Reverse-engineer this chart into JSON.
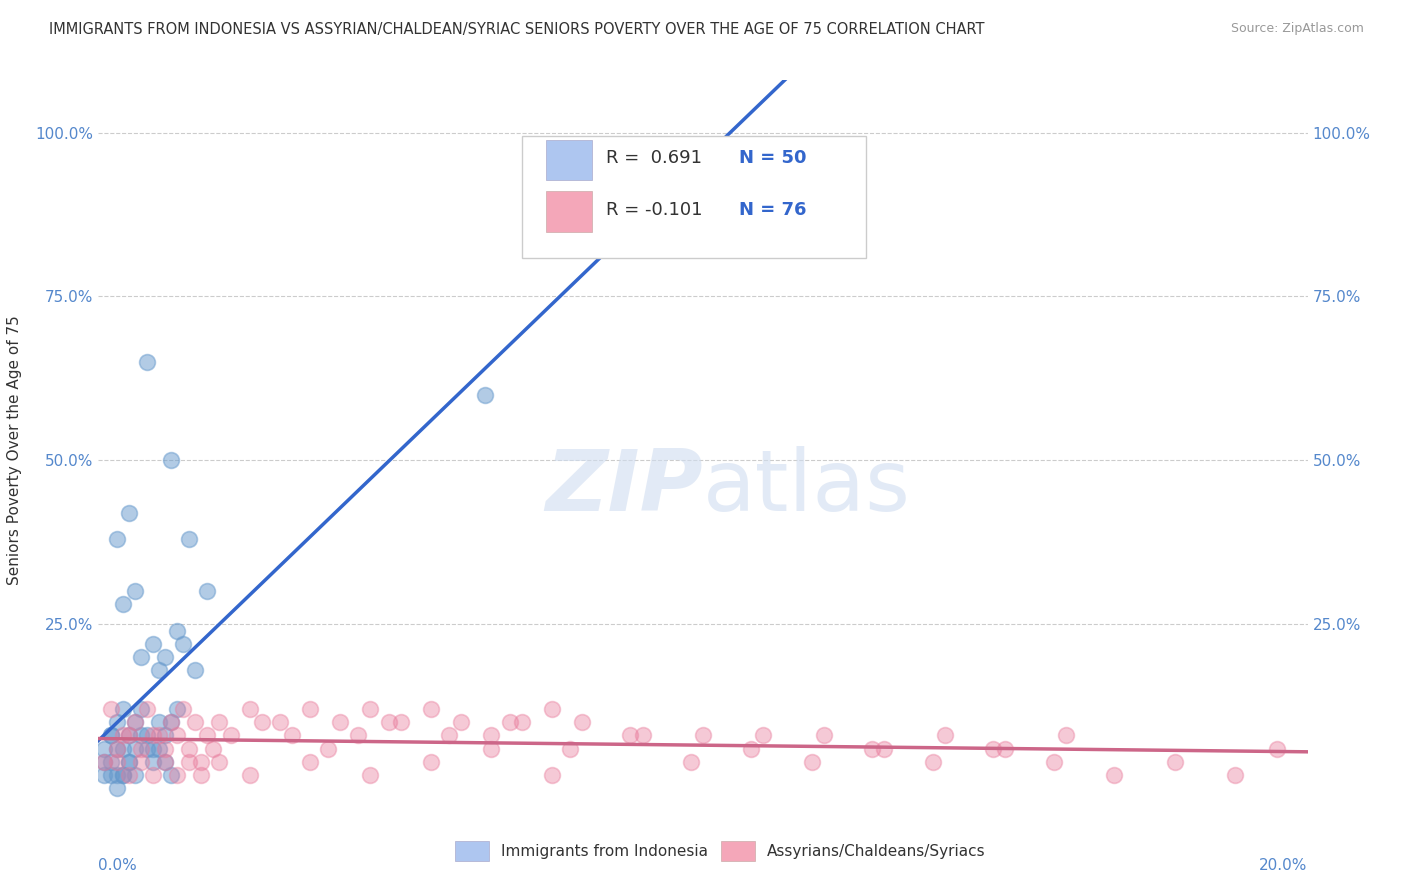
{
  "title": "IMMIGRANTS FROM INDONESIA VS ASSYRIAN/CHALDEAN/SYRIAC SENIORS POVERTY OVER THE AGE OF 75 CORRELATION CHART",
  "source": "Source: ZipAtlas.com",
  "ylabel": "Seniors Poverty Over the Age of 75",
  "legend1_label_r": "R =  0.691",
  "legend1_label_n": "N = 50",
  "legend2_label_r": "R = -0.101",
  "legend2_label_n": "N = 76",
  "legend1_color": "#aec6f0",
  "legend2_color": "#f4a7b9",
  "blue_color": "#6699cc",
  "pink_color": "#e8799a",
  "trend_blue": "#3366cc",
  "trend_pink": "#cc6688",
  "ytick_vals": [
    0.0,
    0.25,
    0.5,
    0.75,
    1.0
  ],
  "ytick_labels": [
    "",
    "25.0%",
    "50.0%",
    "75.0%",
    "100.0%"
  ],
  "xlim": [
    0.0,
    0.2
  ],
  "ylim": [
    -0.05,
    1.08
  ],
  "blue_scatter_x": [
    0.005,
    0.008,
    0.012,
    0.015,
    0.018,
    0.003,
    0.004,
    0.006,
    0.007,
    0.009,
    0.01,
    0.011,
    0.013,
    0.014,
    0.016,
    0.002,
    0.003,
    0.004,
    0.005,
    0.006,
    0.007,
    0.008,
    0.009,
    0.01,
    0.011,
    0.012,
    0.013,
    0.001,
    0.002,
    0.003,
    0.004,
    0.005,
    0.006,
    0.007,
    0.008,
    0.009,
    0.01,
    0.011,
    0.012,
    0.001,
    0.002,
    0.003,
    0.004,
    0.005,
    0.006,
    0.064,
    0.001,
    0.002,
    0.003,
    0.004
  ],
  "blue_scatter_y": [
    0.42,
    0.65,
    0.5,
    0.38,
    0.3,
    0.38,
    0.28,
    0.3,
    0.2,
    0.22,
    0.18,
    0.2,
    0.24,
    0.22,
    0.18,
    0.08,
    0.1,
    0.12,
    0.08,
    0.1,
    0.12,
    0.08,
    0.06,
    0.1,
    0.08,
    0.1,
    0.12,
    0.06,
    0.08,
    0.06,
    0.06,
    0.04,
    0.06,
    0.08,
    0.06,
    0.04,
    0.06,
    0.04,
    0.02,
    0.04,
    0.04,
    0.02,
    0.02,
    0.04,
    0.02,
    0.6,
    0.02,
    0.02,
    0.0,
    0.02
  ],
  "pink_scatter_x": [
    0.002,
    0.004,
    0.006,
    0.008,
    0.01,
    0.012,
    0.014,
    0.016,
    0.018,
    0.02,
    0.025,
    0.03,
    0.035,
    0.04,
    0.045,
    0.05,
    0.055,
    0.06,
    0.065,
    0.07,
    0.075,
    0.08,
    0.09,
    0.1,
    0.11,
    0.12,
    0.13,
    0.14,
    0.15,
    0.16,
    0.003,
    0.005,
    0.007,
    0.009,
    0.011,
    0.013,
    0.015,
    0.017,
    0.019,
    0.022,
    0.027,
    0.032,
    0.038,
    0.043,
    0.048,
    0.058,
    0.068,
    0.078,
    0.088,
    0.098,
    0.108,
    0.118,
    0.128,
    0.138,
    0.148,
    0.158,
    0.168,
    0.178,
    0.188,
    0.195,
    0.001,
    0.003,
    0.005,
    0.007,
    0.009,
    0.011,
    0.013,
    0.015,
    0.017,
    0.02,
    0.025,
    0.035,
    0.045,
    0.055,
    0.065,
    0.075
  ],
  "pink_scatter_y": [
    0.12,
    0.08,
    0.1,
    0.12,
    0.08,
    0.1,
    0.12,
    0.1,
    0.08,
    0.1,
    0.12,
    0.1,
    0.12,
    0.1,
    0.12,
    0.1,
    0.12,
    0.1,
    0.08,
    0.1,
    0.12,
    0.1,
    0.08,
    0.08,
    0.08,
    0.08,
    0.06,
    0.08,
    0.06,
    0.08,
    0.06,
    0.08,
    0.06,
    0.08,
    0.06,
    0.08,
    0.06,
    0.04,
    0.06,
    0.08,
    0.1,
    0.08,
    0.06,
    0.08,
    0.1,
    0.08,
    0.1,
    0.06,
    0.08,
    0.04,
    0.06,
    0.04,
    0.06,
    0.04,
    0.06,
    0.04,
    0.02,
    0.04,
    0.02,
    0.06,
    0.04,
    0.04,
    0.02,
    0.04,
    0.02,
    0.04,
    0.02,
    0.04,
    0.02,
    0.04,
    0.02,
    0.04,
    0.02,
    0.04,
    0.06,
    0.02
  ]
}
